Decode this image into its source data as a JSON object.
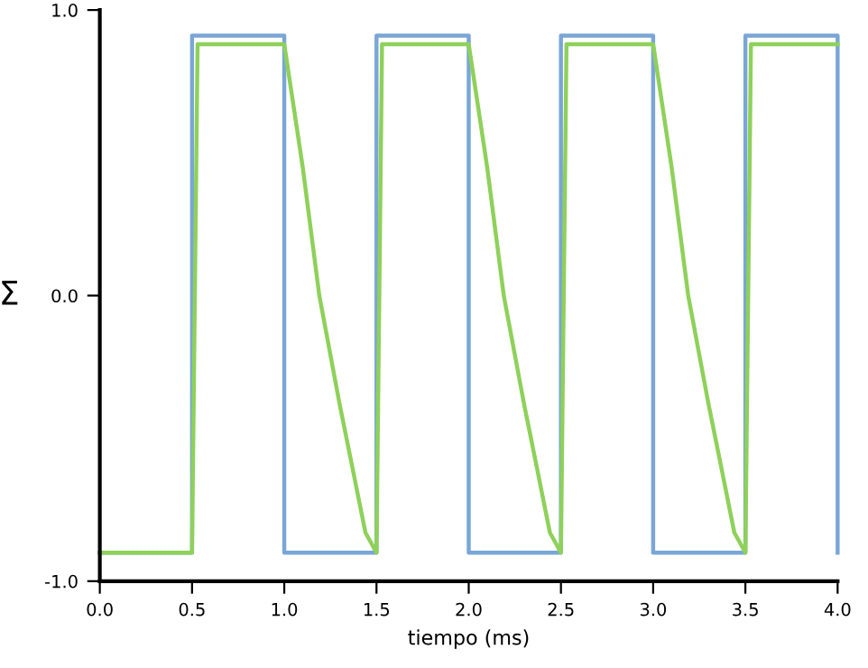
{
  "chart_data": {
    "type": "line",
    "xlabel": "tiempo (ms)",
    "ylabel": "Σ",
    "xlim": [
      0,
      4
    ],
    "ylim": [
      -1,
      1
    ],
    "xticks": [
      {
        "value": 0,
        "label": "0.0"
      },
      0.5,
      {
        "value": 1,
        "label": "1.0"
      },
      1.5,
      {
        "value": 2,
        "label": "2.0"
      },
      2.5,
      {
        "value": 3,
        "label": "3.0"
      },
      3.5,
      {
        "value": 4,
        "label": "4.0"
      }
    ],
    "yticks": [
      {
        "value": -1,
        "label": "-1.0"
      },
      {
        "value": 0,
        "label": "0.0"
      },
      {
        "value": 1,
        "label": "1.0"
      }
    ],
    "grid": false,
    "marker": "none",
    "line_style": "solid",
    "series": [
      {
        "color": "#7aa6d6",
        "x": [
          0,
          0.5,
          0.5,
          1.0,
          1.0,
          1.5,
          1.5,
          2.0,
          2.0,
          2.5,
          2.5,
          3.0,
          3.0,
          3.5,
          3.5,
          4.0,
          4.0
        ],
        "values": [
          -0.9,
          -0.9,
          0.91,
          0.91,
          -0.9,
          -0.9,
          0.91,
          0.91,
          -0.9,
          -0.9,
          0.91,
          0.91,
          -0.9,
          -0.9,
          0.91,
          0.91,
          -0.9
        ]
      },
      {
        "color": "#8ed15a",
        "x": [
          0,
          0.5,
          0.53,
          1.0,
          1.1,
          1.19,
          1.3,
          1.375,
          1.44,
          1.5,
          1.53,
          2.0,
          2.1,
          2.19,
          2.3,
          2.375,
          2.44,
          2.5,
          2.53,
          3.0,
          3.1,
          3.19,
          3.3,
          3.375,
          3.44,
          3.5,
          3.53,
          4.0
        ],
        "values": [
          -0.9,
          -0.9,
          0.88,
          0.88,
          0.45,
          0.0,
          -0.38,
          -0.62,
          -0.83,
          -0.9,
          0.88,
          0.88,
          0.45,
          0.0,
          -0.38,
          -0.62,
          -0.83,
          -0.9,
          0.88,
          0.88,
          0.45,
          0.0,
          -0.38,
          -0.62,
          -0.83,
          -0.9,
          0.88,
          0.88
        ]
      }
    ]
  }
}
